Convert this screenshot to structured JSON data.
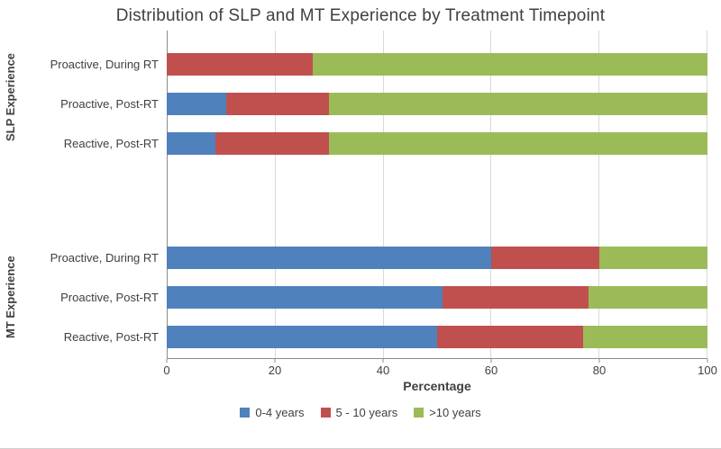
{
  "title": "Distribution of SLP and MT Experience by Treatment Timepoint",
  "chart_data": {
    "type": "bar",
    "orientation": "horizontal",
    "stacked": true,
    "title": "Distribution of SLP and MT Experience by Treatment Timepoint",
    "xlabel": "Percentage",
    "ylabel": "",
    "xlim": [
      0,
      100
    ],
    "xticks": [
      0,
      20,
      40,
      60,
      80,
      100
    ],
    "grid": true,
    "legend_position": "bottom",
    "colors": {
      "blue": "#4F81BD",
      "red": "#C0504D",
      "green": "#9BBB59"
    },
    "groups": [
      {
        "name": "SLP Experience",
        "categories": [
          "Proactive, During RT",
          "Proactive, Post-RT",
          "Reactive, Post-RT"
        ],
        "series": [
          {
            "name": "0-4 years",
            "color": "#4F81BD",
            "values": [
              0,
              11,
              9
            ]
          },
          {
            "name": "5 - 10 years",
            "color": "#C0504D",
            "values": [
              27,
              19,
              21
            ]
          },
          {
            "name": ">10 years",
            "color": "#9BBB59",
            "values": [
              73,
              70,
              70
            ]
          }
        ]
      },
      {
        "name": "MT Experience",
        "categories": [
          "Proactive, During RT",
          "Proactive, Post-RT",
          "Reactive, Post-RT"
        ],
        "series": [
          {
            "name": "0-4 years",
            "color": "#4F81BD",
            "values": [
              60,
              51,
              50
            ]
          },
          {
            "name": "5 - 10 years",
            "color": "#C0504D",
            "values": [
              20,
              27,
              27
            ]
          },
          {
            "name": ">10 years",
            "color": "#9BBB59",
            "values": [
              20,
              22,
              23
            ]
          }
        ]
      }
    ],
    "legend": [
      {
        "label": "0-4 years",
        "color": "#4F81BD"
      },
      {
        "label": "5 - 10 years",
        "color": "#C0504D"
      },
      {
        "label": ">10 years",
        "color": "#9BBB59"
      }
    ]
  }
}
